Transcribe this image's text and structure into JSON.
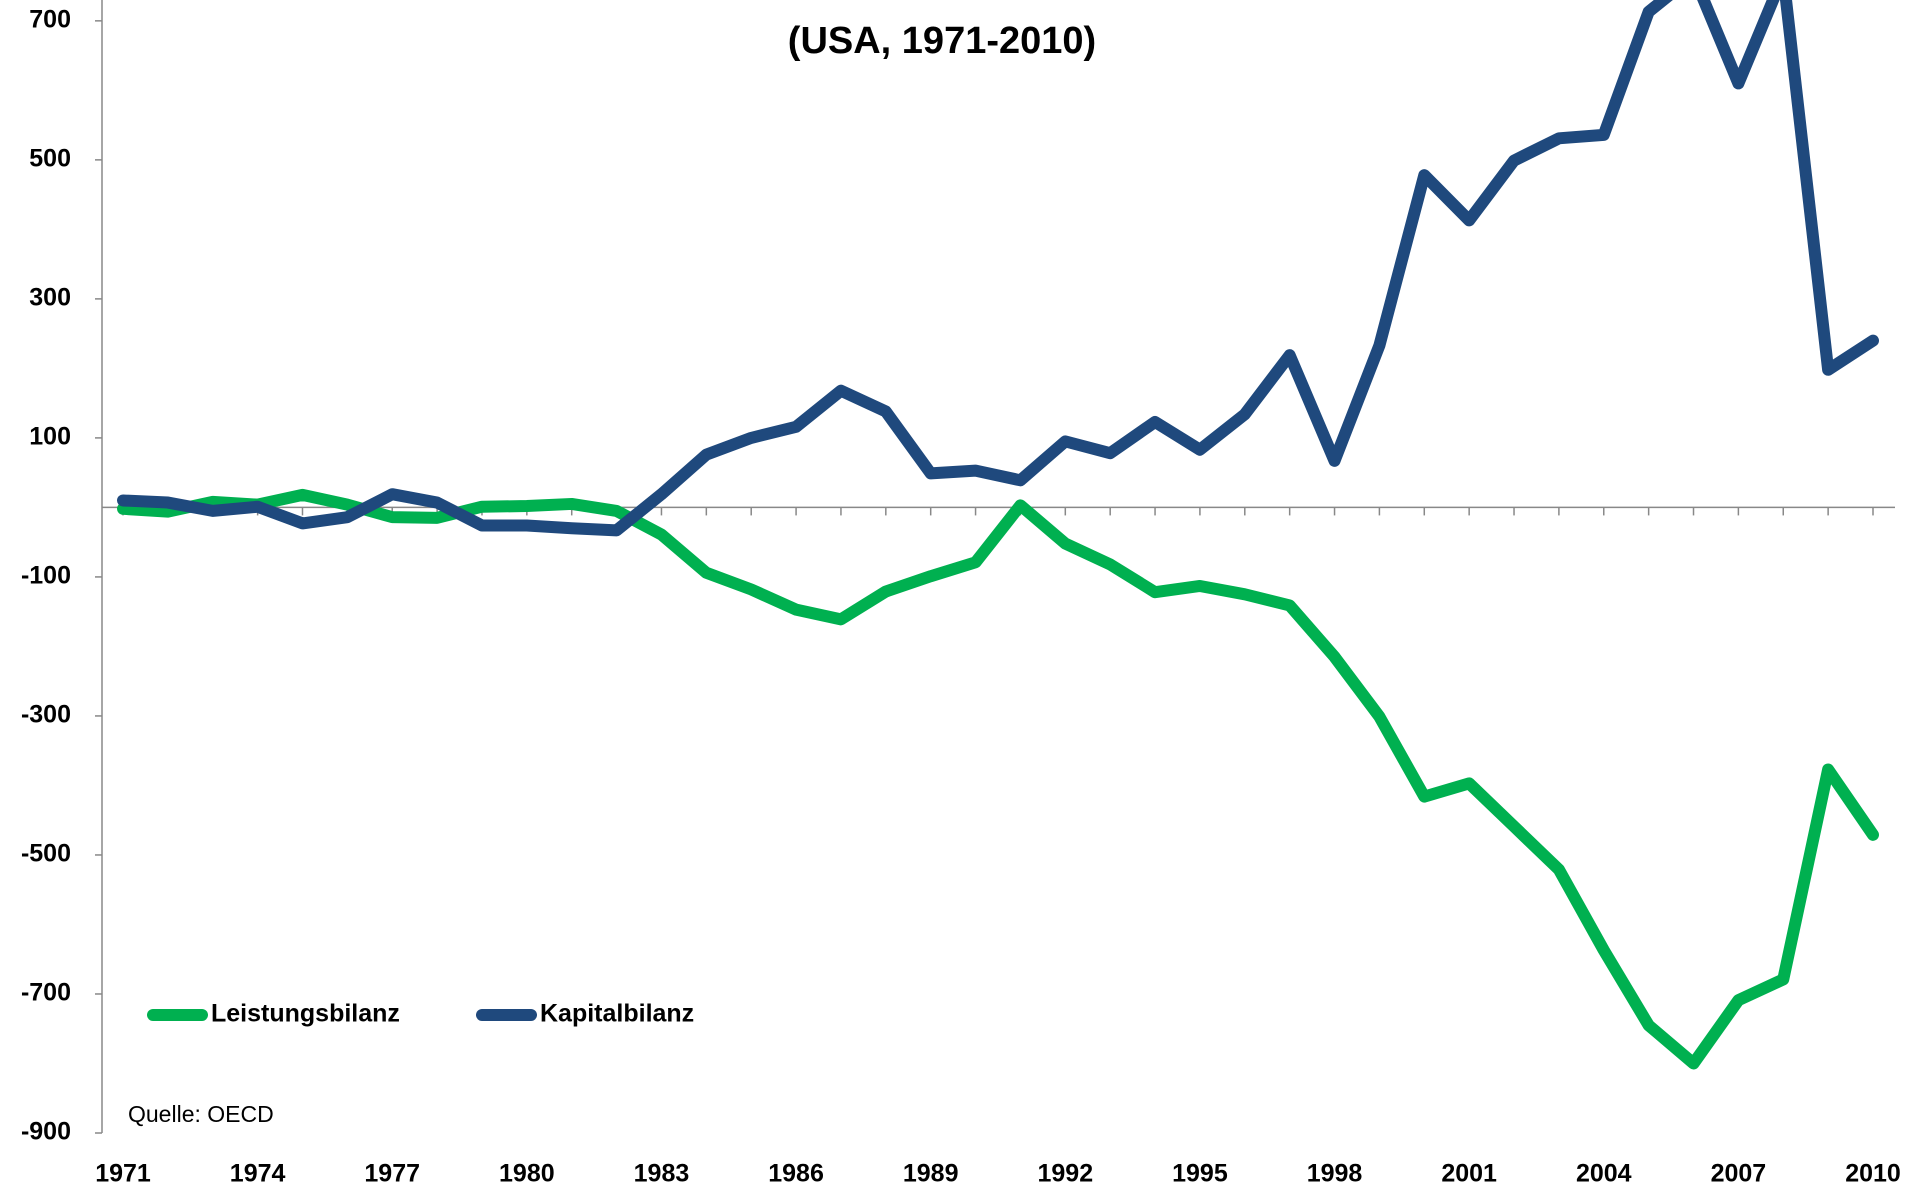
{
  "chart_data": {
    "type": "line",
    "subtitle": "(USA, 1971-2010)",
    "source": "Quelle: OECD",
    "x": [
      1971,
      1972,
      1973,
      1974,
      1975,
      1976,
      1977,
      1978,
      1979,
      1980,
      1981,
      1982,
      1983,
      1984,
      1985,
      1986,
      1987,
      1988,
      1989,
      1990,
      1991,
      1992,
      1993,
      1994,
      1995,
      1996,
      1997,
      1998,
      1999,
      2000,
      2001,
      2002,
      2003,
      2004,
      2005,
      2006,
      2007,
      2008,
      2009,
      2010
    ],
    "xlim": [
      1971,
      2010
    ],
    "xticks": [
      1971,
      1974,
      1977,
      1980,
      1983,
      1986,
      1989,
      1992,
      1995,
      1998,
      2001,
      2004,
      2007,
      2010
    ],
    "ylim": [
      -900,
      730
    ],
    "yticks": [
      700,
      500,
      300,
      100,
      -100,
      -300,
      -500,
      -700,
      -900
    ],
    "legend": "bottom-left",
    "series": [
      {
        "name": "Leistungsbilanz",
        "color": "#00b050",
        "values": [
          -2,
          -6,
          8,
          4,
          18,
          4,
          -14,
          -15,
          1,
          2,
          5,
          -5,
          -39,
          -94,
          -118,
          -147,
          -161,
          -121,
          -99,
          -79,
          3,
          -52,
          -82,
          -122,
          -113,
          -125,
          -141,
          -215,
          -301,
          -416,
          -397,
          -459,
          -521,
          -637,
          -745,
          -800,
          -709,
          -679,
          -377,
          -471
        ]
      },
      {
        "name": "Kapitalbilanz",
        "color": "#1f497d",
        "values": [
          10,
          7,
          -5,
          1,
          -23,
          -14,
          19,
          7,
          -26,
          -26,
          -30,
          -33,
          19,
          76,
          100,
          116,
          168,
          138,
          49,
          53,
          39,
          95,
          78,
          123,
          83,
          134,
          219,
          67,
          233,
          478,
          413,
          499,
          531,
          536,
          713,
          765,
          610,
          765,
          198,
          240
        ]
      }
    ]
  }
}
